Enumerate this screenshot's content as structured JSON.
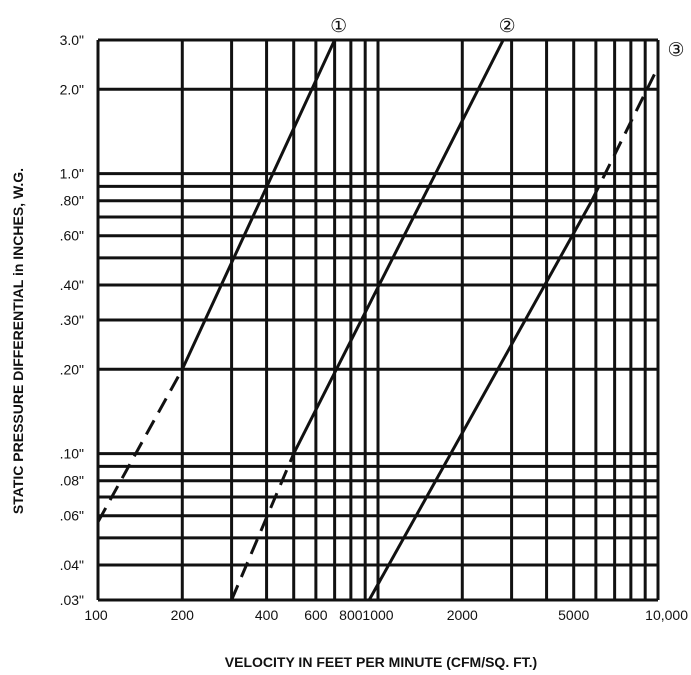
{
  "chart_data": {
    "type": "line",
    "xscale": "log",
    "yscale": "log",
    "grid": true,
    "xlabel": "VELOCITY IN FEET PER MINUTE (CFM/SQ. FT.)",
    "ylabel": "STATIC PRESSURE DIFFERENTIAL in INCHES, W.G.",
    "xlim": [
      100,
      10000
    ],
    "ylim": [
      0.03,
      3.0
    ],
    "x_ticks": [
      {
        "value": 100,
        "label": "100"
      },
      {
        "value": 200,
        "label": "200"
      },
      {
        "value": 400,
        "label": "400"
      },
      {
        "value": 600,
        "label": "600"
      },
      {
        "value": 800,
        "label": "800"
      },
      {
        "value": 1000,
        "label": "1000"
      },
      {
        "value": 2000,
        "label": "2000"
      },
      {
        "value": 5000,
        "label": "5000"
      },
      {
        "value": 10000,
        "label": "10,000"
      }
    ],
    "y_ticks": [
      {
        "value": 3.0,
        "label": "3.0\""
      },
      {
        "value": 2.0,
        "label": "2.0\""
      },
      {
        "value": 1.0,
        "label": "1.0\""
      },
      {
        "value": 0.8,
        "label": ".80\""
      },
      {
        "value": 0.6,
        "label": ".60\""
      },
      {
        "value": 0.4,
        "label": ".40\""
      },
      {
        "value": 0.3,
        "label": ".30\""
      },
      {
        "value": 0.2,
        "label": ".20\""
      },
      {
        "value": 0.1,
        "label": ".10\""
      },
      {
        "value": 0.08,
        "label": ".08\""
      },
      {
        "value": 0.06,
        "label": ".06\""
      },
      {
        "value": 0.04,
        "label": ".04\""
      },
      {
        "value": 0.03,
        "label": ".03\""
      }
    ],
    "x_grid": [
      100,
      200,
      300,
      400,
      500,
      600,
      700,
      800,
      900,
      1000,
      2000,
      3000,
      4000,
      5000,
      6000,
      7000,
      8000,
      9000,
      10000
    ],
    "y_grid": [
      0.03,
      0.04,
      0.05,
      0.06,
      0.07,
      0.08,
      0.09,
      0.1,
      0.2,
      0.3,
      0.4,
      0.5,
      0.6,
      0.7,
      0.8,
      0.9,
      1.0,
      2.0,
      3.0
    ],
    "series": [
      {
        "label": "①",
        "dashed_segment": [
          [
            100,
            0.057
          ],
          [
            200,
            0.2
          ]
        ],
        "solid_segment": [
          [
            200,
            0.2
          ],
          [
            700,
            3.0
          ]
        ]
      },
      {
        "label": "②",
        "dashed_segment": [
          [
            300,
            0.03
          ],
          [
            500,
            0.1
          ]
        ],
        "solid_segment": [
          [
            500,
            0.1
          ],
          [
            2800,
            3.0
          ]
        ]
      },
      {
        "label": "③",
        "solid_segment": [
          [
            930,
            0.03
          ],
          [
            5800,
            0.8
          ]
        ],
        "dashed_segment": [
          [
            5800,
            0.8
          ],
          [
            10000,
            2.4
          ]
        ]
      }
    ]
  }
}
